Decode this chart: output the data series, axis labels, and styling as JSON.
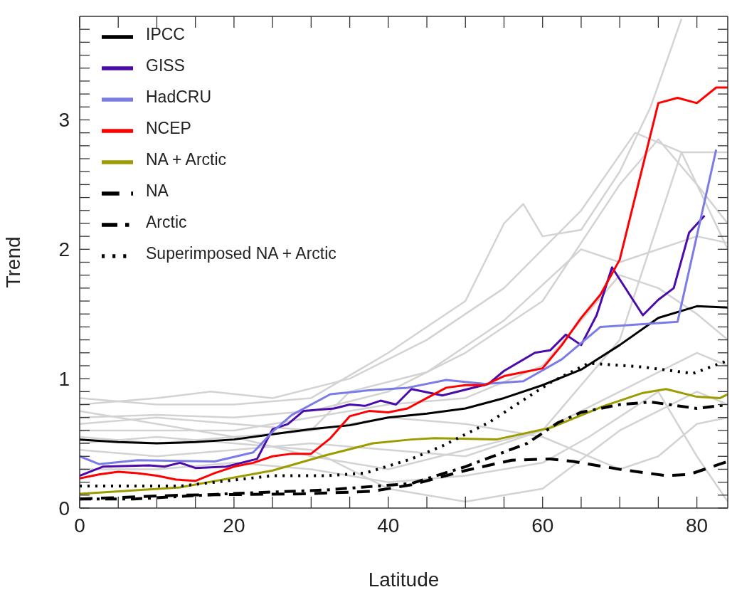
{
  "chart_data": {
    "type": "line",
    "xlabel": "Latitude",
    "ylabel": "Trend",
    "xlim": [
      0,
      84
    ],
    "ylim": [
      0,
      3.8
    ],
    "xticks": [
      0,
      {
        "value": 5,
        "label": null
      },
      {
        "value": 10,
        "label": null
      },
      {
        "value": 15,
        "label": null
      },
      20,
      {
        "value": 25,
        "label": null
      },
      {
        "value": 30,
        "label": null
      },
      {
        "value": 35,
        "label": null
      },
      40,
      {
        "value": 45,
        "label": null
      },
      {
        "value": 50,
        "label": null
      },
      {
        "value": 55,
        "label": null
      },
      60,
      {
        "value": 65,
        "label": null
      },
      {
        "value": 70,
        "label": null
      },
      {
        "value": 75,
        "label": null
      },
      80
    ],
    "yticks": [
      0,
      {
        "value": 0.1,
        "label": null
      },
      {
        "value": 0.2,
        "label": null
      },
      {
        "value": 0.3,
        "label": null
      },
      {
        "value": 0.4,
        "label": null
      },
      {
        "value": 0.5,
        "label": null
      },
      {
        "value": 0.6,
        "label": null
      },
      {
        "value": 0.7,
        "label": null
      },
      {
        "value": 0.8,
        "label": null
      },
      {
        "value": 0.9,
        "label": null
      },
      1,
      {
        "value": 1.1,
        "label": null
      },
      {
        "value": 1.2,
        "label": null
      },
      {
        "value": 1.3,
        "label": null
      },
      {
        "value": 1.4,
        "label": null
      },
      {
        "value": 1.5,
        "label": null
      },
      {
        "value": 1.6,
        "label": null
      },
      {
        "value": 1.7,
        "label": null
      },
      {
        "value": 1.8,
        "label": null
      },
      {
        "value": 1.9,
        "label": null
      },
      2,
      {
        "value": 2.1,
        "label": null
      },
      {
        "value": 2.2,
        "label": null
      },
      {
        "value": 2.3,
        "label": null
      },
      {
        "value": 2.4,
        "label": null
      },
      {
        "value": 2.5,
        "label": null
      },
      {
        "value": 2.6,
        "label": null
      },
      {
        "value": 2.7,
        "label": null
      },
      {
        "value": 2.8,
        "label": null
      },
      {
        "value": 2.9,
        "label": null
      },
      3,
      {
        "value": 3.1,
        "label": null
      },
      {
        "value": 3.2,
        "label": null
      },
      {
        "value": 3.3,
        "label": null
      },
      {
        "value": 3.4,
        "label": null
      },
      {
        "value": 3.5,
        "label": null
      },
      {
        "value": 3.6,
        "label": null
      },
      {
        "value": 3.7,
        "label": null
      }
    ],
    "legend": "top left",
    "marker": "none",
    "series": [
      {
        "color": "#d3d3d3",
        "x": [
          0,
          10,
          20,
          30,
          40,
          50,
          55,
          57.5,
          60,
          65,
          70,
          74,
          78
        ],
        "values": [
          0.85,
          0.8,
          0.8,
          0.85,
          1.2,
          1.6,
          2.2,
          2.35,
          2.1,
          2.15,
          2.6,
          3.1,
          3.78
        ]
      },
      {
        "color": "#d3d3d3",
        "x": [
          0,
          10,
          17,
          25,
          35,
          45,
          55,
          65,
          72,
          78,
          84
        ],
        "values": [
          0.8,
          0.85,
          0.9,
          0.85,
          1.0,
          1.3,
          1.7,
          2.3,
          2.9,
          2.75,
          2.0
        ]
      },
      {
        "color": "#d3d3d3",
        "x": [
          0,
          10,
          20,
          30,
          40,
          50,
          60,
          70,
          75,
          80,
          84
        ],
        "values": [
          0.7,
          0.72,
          0.7,
          0.75,
          0.9,
          1.2,
          1.6,
          2.5,
          2.85,
          2.5,
          2.2
        ]
      },
      {
        "color": "#d3d3d3",
        "x": [
          0,
          10,
          20,
          30,
          40,
          50,
          60,
          70,
          75,
          80,
          84
        ],
        "values": [
          0.6,
          0.6,
          0.6,
          0.7,
          0.8,
          0.85,
          1.1,
          1.8,
          1.7,
          1.5,
          1.3
        ]
      },
      {
        "color": "#d3d3d3",
        "x": [
          0,
          10,
          20,
          30,
          40,
          50,
          60,
          70,
          78,
          84
        ],
        "values": [
          0.45,
          0.4,
          0.45,
          0.5,
          0.45,
          0.4,
          0.6,
          1.3,
          2.75,
          2.75
        ]
      },
      {
        "color": "#d3d3d3",
        "x": [
          0,
          10,
          20,
          30,
          40,
          50,
          60,
          66,
          75,
          80,
          84
        ],
        "values": [
          0.3,
          0.3,
          0.35,
          0.3,
          0.2,
          0.25,
          0.35,
          0.55,
          0.9,
          0.4,
          0.05
        ]
      },
      {
        "color": "#d3d3d3",
        "x": [
          0,
          10,
          20,
          30,
          40,
          50,
          60,
          70,
          80,
          84
        ],
        "values": [
          0.55,
          0.5,
          0.55,
          0.4,
          0.3,
          0.45,
          0.6,
          0.9,
          1.2,
          1.1
        ]
      },
      {
        "color": "#d3d3d3",
        "x": [
          0,
          10,
          20,
          30,
          35,
          45,
          55,
          65,
          70,
          80,
          84
        ],
        "values": [
          0.65,
          0.7,
          0.65,
          0.6,
          0.9,
          1.05,
          1.45,
          2.0,
          1.9,
          2.1,
          2.05
        ]
      },
      {
        "color": "#d3d3d3",
        "x": [
          0,
          10,
          20,
          30,
          40,
          50,
          60,
          70,
          80,
          84
        ],
        "values": [
          0.5,
          0.55,
          0.5,
          0.45,
          0.15,
          0.05,
          0.15,
          0.6,
          0.9,
          0.8
        ]
      },
      {
        "color": "#d3d3d3",
        "x": [
          0,
          10,
          20,
          30,
          40,
          50,
          60,
          70,
          75,
          80,
          84
        ],
        "values": [
          0.75,
          0.65,
          0.55,
          0.6,
          0.7,
          0.65,
          0.55,
          0.3,
          0.4,
          0.65,
          0.7
        ]
      },
      {
        "name": "IPCC",
        "color": "#000000",
        "line_style": "solid",
        "x": [
          0,
          5,
          10,
          15,
          20,
          25,
          30,
          35,
          40,
          45,
          50,
          55,
          60,
          65,
          70,
          75,
          80,
          84
        ],
        "values": [
          0.53,
          0.51,
          0.5,
          0.51,
          0.53,
          0.57,
          0.61,
          0.64,
          0.7,
          0.73,
          0.77,
          0.85,
          0.95,
          1.07,
          1.26,
          1.47,
          1.56,
          1.55
        ]
      },
      {
        "name": "GISS",
        "color": "#4b0aaa",
        "line_style": "solid",
        "x": [
          0,
          3,
          9,
          11,
          13,
          15,
          19,
          23,
          25,
          27,
          29,
          33,
          35,
          37,
          39,
          41,
          43,
          47,
          53,
          55,
          59,
          61,
          63,
          65,
          67,
          69,
          73,
          75,
          77,
          79,
          81
        ],
        "values": [
          0.25,
          0.32,
          0.33,
          0.32,
          0.35,
          0.31,
          0.32,
          0.38,
          0.61,
          0.65,
          0.75,
          0.77,
          0.8,
          0.79,
          0.83,
          0.8,
          0.92,
          0.87,
          0.96,
          1.06,
          1.2,
          1.22,
          1.34,
          1.26,
          1.49,
          1.86,
          1.49,
          1.61,
          1.7,
          2.13,
          2.26
        ]
      },
      {
        "name": "HadCRU",
        "color": "#7b7be8",
        "line_style": "solid",
        "x": [
          0,
          2.5,
          7.5,
          17.5,
          22.5,
          25,
          27.5,
          32.5,
          37.5,
          42.5,
          47.5,
          52.5,
          57.5,
          62.5,
          67.5,
          77.5,
          82.5
        ],
        "values": [
          0.4,
          0.34,
          0.37,
          0.36,
          0.43,
          0.59,
          0.72,
          0.88,
          0.91,
          0.93,
          0.99,
          0.96,
          0.98,
          1.15,
          1.4,
          1.44,
          2.77
        ]
      },
      {
        "name": "NCEP",
        "color": "#ff0000",
        "line_style": "solid",
        "x": [
          0,
          2.5,
          5,
          7.5,
          10,
          12.5,
          15,
          17.5,
          20,
          22.5,
          25,
          27.5,
          30,
          32.5,
          35,
          37.5,
          40,
          42.5,
          45,
          47.5,
          50,
          52.5,
          55,
          57.5,
          60,
          62.5,
          65,
          67.5,
          70,
          75,
          77.5,
          80,
          82.5,
          84
        ],
        "values": [
          0.23,
          0.26,
          0.28,
          0.27,
          0.25,
          0.22,
          0.21,
          0.27,
          0.32,
          0.35,
          0.4,
          0.42,
          0.42,
          0.54,
          0.71,
          0.75,
          0.74,
          0.77,
          0.85,
          0.93,
          0.95,
          0.95,
          1.02,
          1.05,
          1.08,
          1.26,
          1.47,
          1.65,
          1.92,
          3.13,
          3.17,
          3.13,
          3.25,
          3.25
        ]
      },
      {
        "name": "NA + Arctic",
        "color": "#9c9c00",
        "line_style": "solid",
        "x": [
          0,
          13,
          25,
          32,
          38,
          43,
          46,
          54,
          61,
          68,
          73,
          76,
          80,
          83,
          84
        ],
        "values": [
          0.11,
          0.16,
          0.29,
          0.41,
          0.5,
          0.53,
          0.54,
          0.53,
          0.62,
          0.79,
          0.89,
          0.92,
          0.86,
          0.85,
          0.88
        ]
      },
      {
        "name": "NA",
        "color": "#000000",
        "line_style": "dashed",
        "x": [
          0,
          13,
          29,
          38,
          43,
          50,
          56,
          61,
          64,
          70,
          76,
          79,
          84
        ],
        "values": [
          0.07,
          0.1,
          0.11,
          0.13,
          0.18,
          0.29,
          0.37,
          0.38,
          0.36,
          0.3,
          0.25,
          0.26,
          0.36
        ]
      },
      {
        "name": "Arctic",
        "color": "#000000",
        "line_style": "dashdot",
        "x": [
          0,
          7,
          19,
          32,
          43,
          50,
          58,
          62,
          65,
          70,
          74,
          80,
          84
        ],
        "values": [
          0.07,
          0.07,
          0.11,
          0.14,
          0.19,
          0.32,
          0.5,
          0.66,
          0.74,
          0.8,
          0.82,
          0.77,
          0.8
        ]
      },
      {
        "name": "Superimposed NA + Arctic",
        "color": "#000000",
        "line_style": "dotted",
        "x": [
          0,
          13,
          25,
          32,
          37,
          43,
          47,
          53,
          61,
          66,
          73,
          79.5,
          84
        ],
        "values": [
          0.17,
          0.17,
          0.25,
          0.25,
          0.27,
          0.38,
          0.48,
          0.66,
          0.97,
          1.12,
          1.09,
          1.04,
          1.14
        ]
      }
    ]
  }
}
